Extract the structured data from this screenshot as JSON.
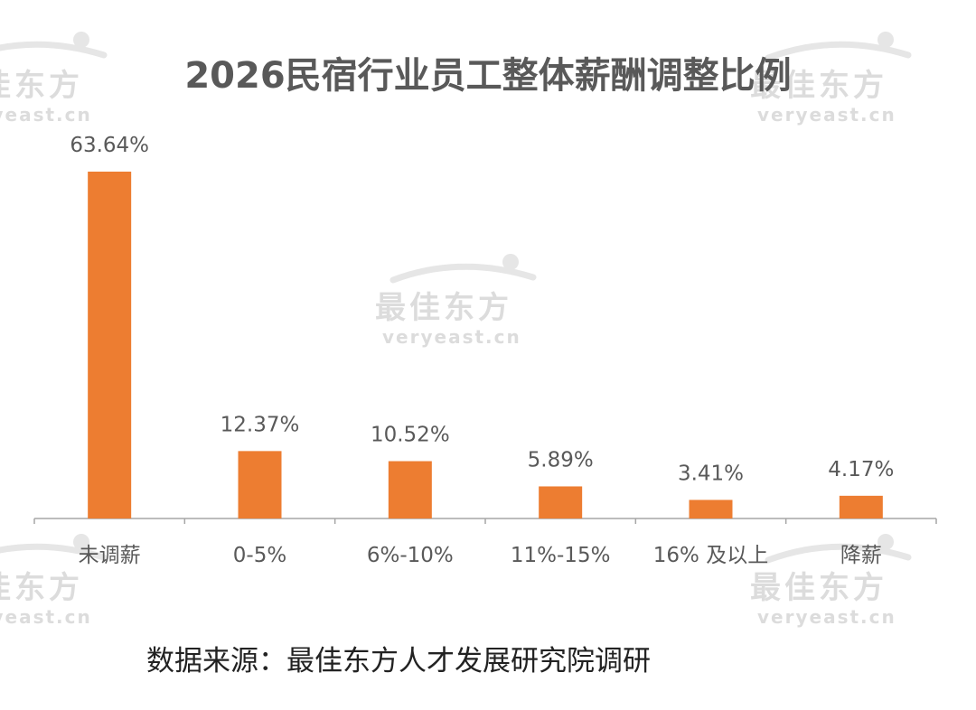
{
  "chart_data": {
    "type": "bar",
    "title": "2026民宿行业员工整体薪酬调整比例",
    "categories": [
      "未调薪",
      "0-5%",
      "6%-10%",
      "11%-15%",
      "16% 及以上",
      "降薪"
    ],
    "values": [
      63.64,
      12.37,
      10.52,
      5.89,
      3.41,
      4.17
    ],
    "value_labels": [
      "63.64%",
      "12.37%",
      "10.52%",
      "5.89%",
      "3.41%",
      "4.17%"
    ],
    "unit": "%",
    "xlabel": "",
    "ylabel": "",
    "ylim": [
      0,
      63.64
    ],
    "grid": false,
    "legend": "none",
    "bar_color": "#ed7d31",
    "axis_color": "#a6a6a6"
  },
  "source": "数据来源：最佳东方人才发展研究院调研",
  "watermark": {
    "brand": "最佳东方",
    "domain": "veryeast.cn"
  }
}
